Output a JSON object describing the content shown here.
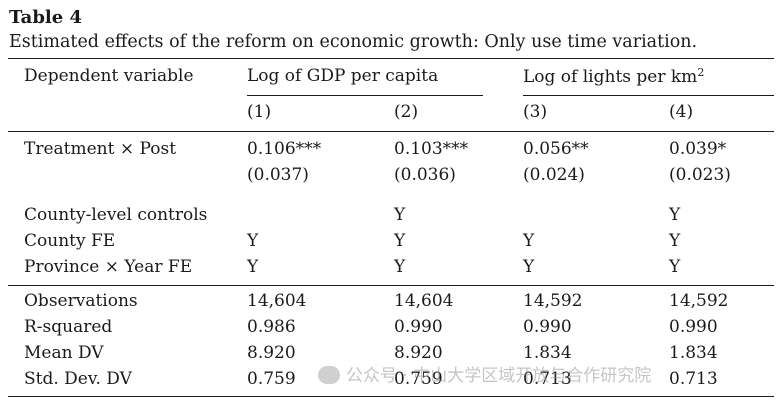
{
  "table": {
    "label": "Table 4",
    "caption": "Estimated effects of the reform on economic growth: Only use time variation.",
    "header": {
      "dep_var": "Dependent variable",
      "group1": "Log of GDP per capita",
      "group2_base": "Log of lights per km",
      "group2_sup": "2",
      "cols": [
        "(1)",
        "(2)",
        "(3)",
        "(4)"
      ]
    },
    "coef_row": {
      "label": "Treatment × Post",
      "values": [
        "0.106***",
        "0.103***",
        "0.056**",
        "0.039*"
      ],
      "se": [
        "(0.037)",
        "(0.036)",
        "(0.024)",
        "(0.023)"
      ]
    },
    "controls": [
      {
        "label": "County-level controls",
        "values": [
          "",
          "Y",
          "",
          "Y"
        ]
      },
      {
        "label": "County FE",
        "values": [
          "Y",
          "Y",
          "Y",
          "Y"
        ]
      },
      {
        "label": "Province × Year FE",
        "values": [
          "Y",
          "Y",
          "Y",
          "Y"
        ]
      }
    ],
    "stats": [
      {
        "label": "Observations",
        "values": [
          "14,604",
          "14,604",
          "14,592",
          "14,592"
        ]
      },
      {
        "label": "R-squared",
        "values": [
          "0.986",
          "0.990",
          "0.990",
          "0.990"
        ]
      },
      {
        "label": "Mean DV",
        "values": [
          "8.920",
          "8.920",
          "1.834",
          "1.834"
        ]
      },
      {
        "label": "Std. Dev. DV",
        "values": [
          "0.759",
          "0.759",
          "0.713",
          "0.713"
        ]
      }
    ]
  },
  "watermark": {
    "text": "公众号 · 中山大学区域开放与合作研究院"
  }
}
